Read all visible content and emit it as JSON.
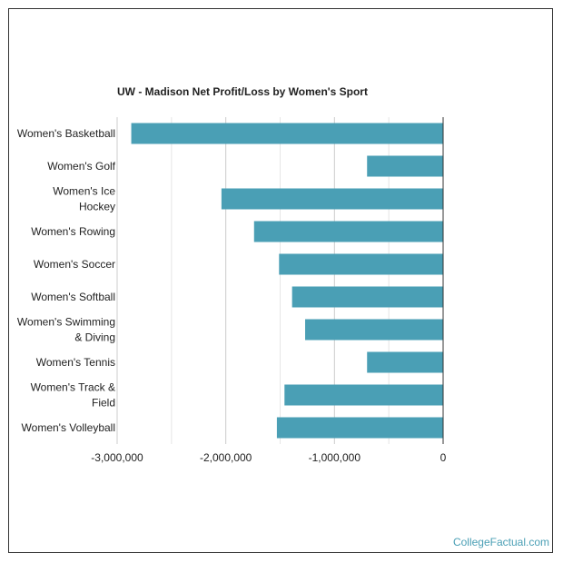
{
  "chart_data": {
    "type": "bar",
    "orientation": "horizontal",
    "title": "UW - Madison Net Profit/Loss by Women's Sport",
    "categories": [
      [
        "Women's Basketball"
      ],
      [
        "Women's Golf"
      ],
      [
        "Women's Ice",
        "Hockey"
      ],
      [
        "Women's Rowing"
      ],
      [
        "Women's Soccer"
      ],
      [
        "Women's Softball"
      ],
      [
        "Women's Swimming",
        "& Diving"
      ],
      [
        "Women's Tennis"
      ],
      [
        "Women's Track &",
        "Field"
      ],
      [
        "Women's Volleyball"
      ]
    ],
    "values": [
      -2870000,
      -700000,
      -2040000,
      -1740000,
      -1510000,
      -1390000,
      -1270000,
      -700000,
      -1460000,
      -1530000
    ],
    "xlim": [
      -3000000,
      0
    ],
    "xticks": [
      -3000000,
      -2000000,
      -1000000,
      0
    ],
    "xtick_labels": [
      "-3,000,000",
      "-2,000,000",
      "-1,000,000",
      "0"
    ],
    "bar_color": "#4a9fb5",
    "xlabel": "",
    "ylabel": "",
    "grid": true,
    "legend": "none"
  },
  "watermark": "CollegeFactual.com"
}
